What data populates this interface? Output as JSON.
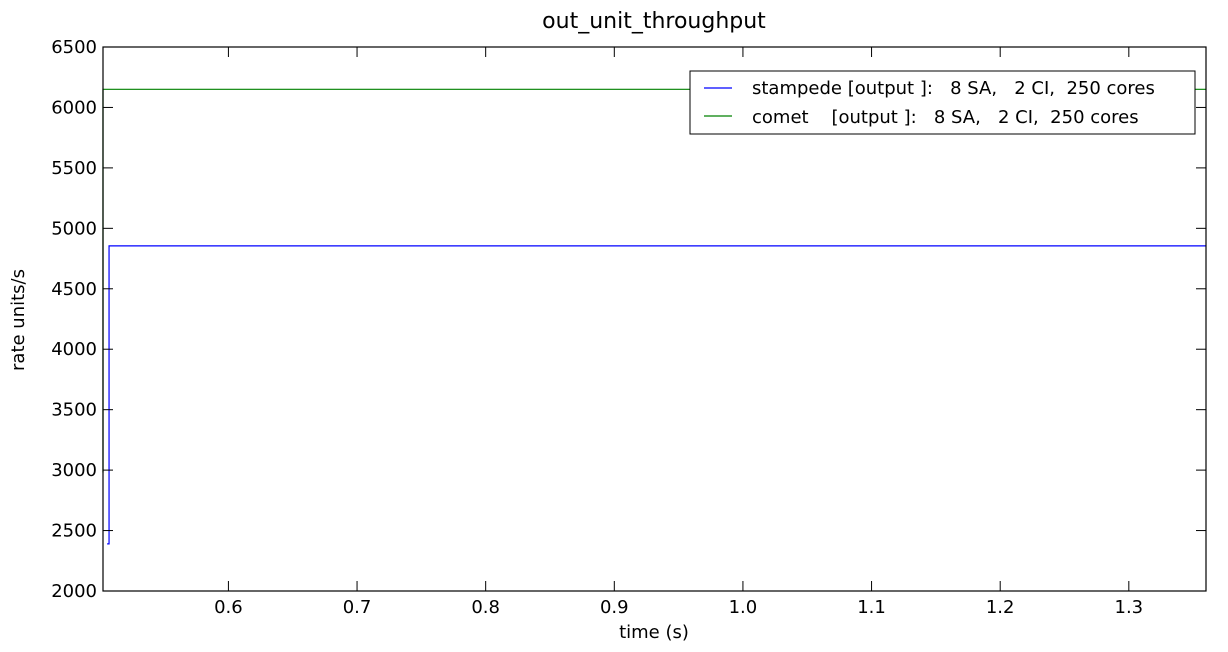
{
  "chart_data": {
    "type": "line",
    "title": "out_unit_throughput",
    "xlabel": "time (s)",
    "ylabel": "rate units/s",
    "xlim": [
      0.5025,
      1.36
    ],
    "ylim": [
      2000,
      6500
    ],
    "xticks": [
      0.6,
      0.7,
      0.8,
      0.9,
      1.0,
      1.1,
      1.2,
      1.3
    ],
    "xtick_labels": [
      "0.6",
      "0.7",
      "0.8",
      "0.9",
      "1.0",
      "1.1",
      "1.2",
      "1.3"
    ],
    "yticks": [
      2000,
      2500,
      3000,
      3500,
      4000,
      4500,
      5000,
      5500,
      6000,
      6500
    ],
    "ytick_labels": [
      "2000",
      "2500",
      "3000",
      "3500",
      "4000",
      "4500",
      "5000",
      "5500",
      "6000",
      "6500"
    ],
    "grid": false,
    "legend_position": "top-right",
    "series": [
      {
        "name": "stampede [output ]:   8 SA,   2 CI,  250 cores",
        "color": "#0000ff",
        "x": [
          0.5057,
          0.5057,
          0.5072,
          0.5072,
          1.36
        ],
        "y": [
          2390,
          2390,
          2390,
          4855,
          4855
        ]
      },
      {
        "name": "comet    [output ]:   8 SA,   2 CI,  250 cores",
        "color": "#008000",
        "x": [
          0.5025,
          0.5025,
          0.5035,
          1.36
        ],
        "y": [
          2980,
          6150,
          6150,
          6150
        ]
      }
    ]
  }
}
